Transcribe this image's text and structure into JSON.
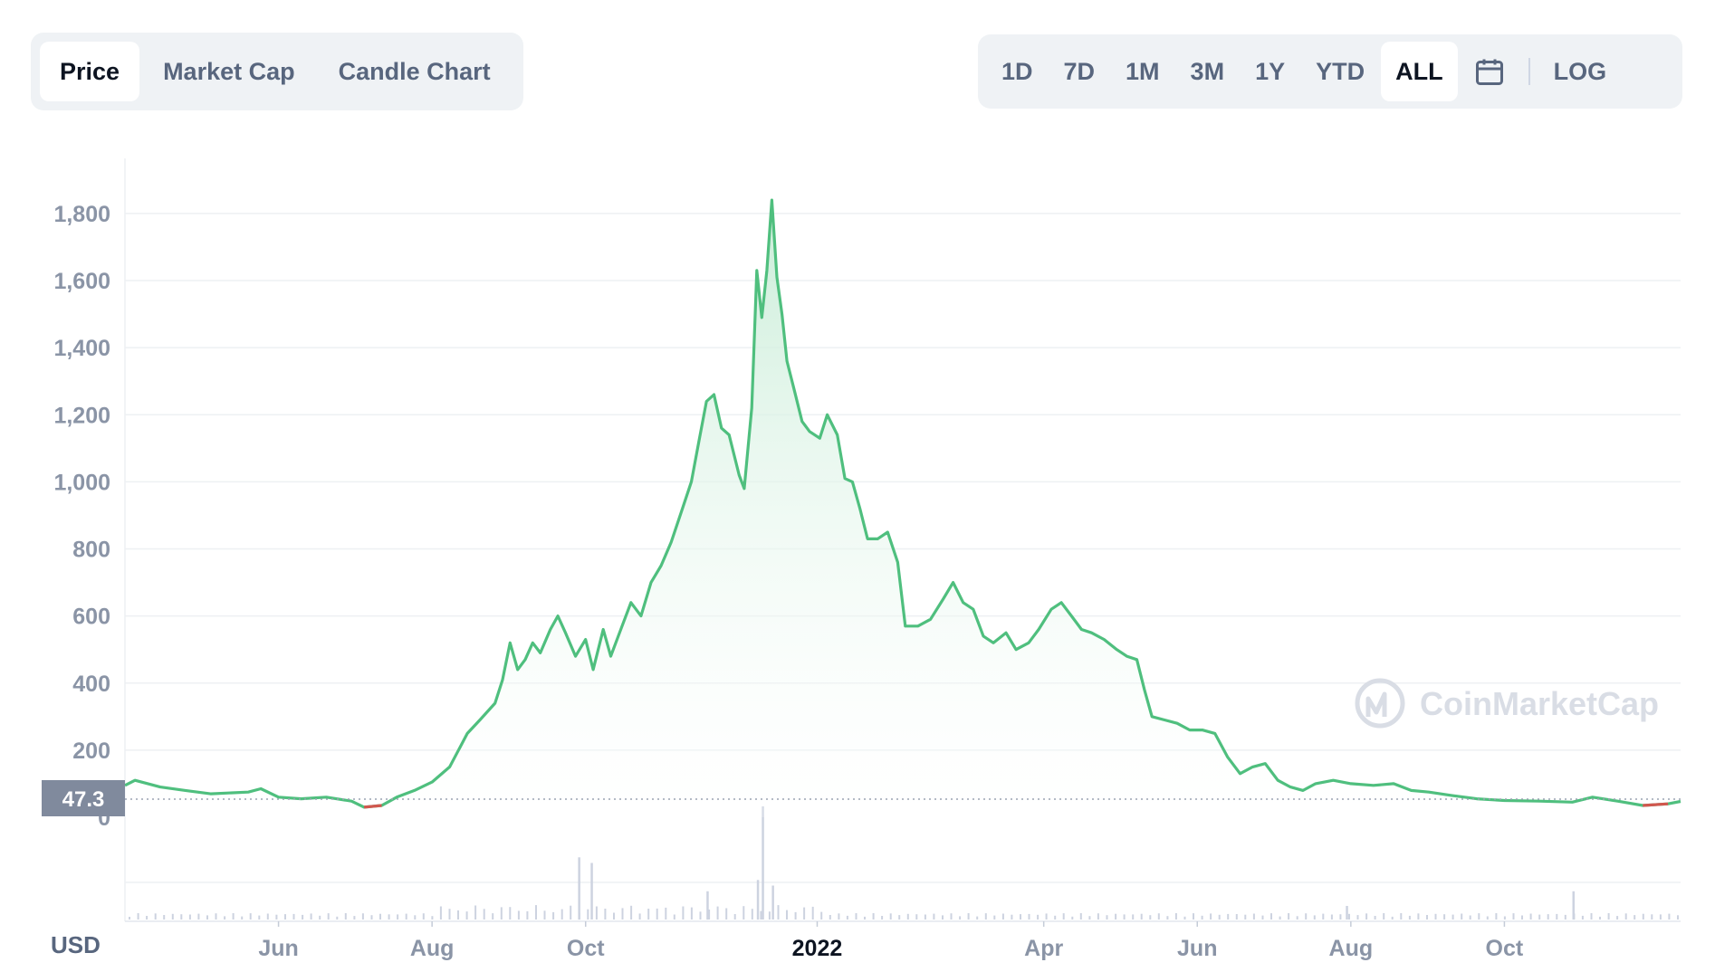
{
  "toolbar": {
    "tabs": [
      {
        "label": "Price",
        "active": true
      },
      {
        "label": "Market Cap",
        "active": false
      },
      {
        "label": "Candle Chart",
        "active": false
      }
    ],
    "ranges": [
      {
        "label": "1D",
        "active": false
      },
      {
        "label": "7D",
        "active": false
      },
      {
        "label": "1M",
        "active": false
      },
      {
        "label": "3M",
        "active": false
      },
      {
        "label": "1Y",
        "active": false
      },
      {
        "label": "YTD",
        "active": false
      },
      {
        "label": "ALL",
        "active": true
      }
    ],
    "calendar_icon": "calendar-icon",
    "log_label": "LOG"
  },
  "watermark": "CoinMarketCap",
  "currency_label": "USD",
  "current_price_label": "47.3",
  "colors": {
    "line": "#4fbf7e",
    "line_down": "#d1574e",
    "fill_top": "#c7ecd6",
    "grid": "#eef0f3",
    "tick": "#8a94a6",
    "volume": "#cdd3e0",
    "price_tag_bg": "#808a9d"
  },
  "chart_data": {
    "type": "area",
    "title": "",
    "xlabel": "",
    "ylabel": "",
    "x_unit": "date",
    "ylim": [
      0,
      1850
    ],
    "y_ticks": [
      0,
      200,
      400,
      600,
      800,
      1000,
      1200,
      1400,
      1600,
      1800
    ],
    "x_ticks": [
      {
        "label": "Jun",
        "date": "2021-06-01"
      },
      {
        "label": "Aug",
        "date": "2021-08-01"
      },
      {
        "label": "Oct",
        "date": "2021-10-01"
      },
      {
        "label": "2022",
        "date": "2022-01-01",
        "bold": true
      },
      {
        "label": "Apr",
        "date": "2022-04-01"
      },
      {
        "label": "Jun",
        "date": "2022-06-01"
      },
      {
        "label": "Aug",
        "date": "2022-08-01"
      },
      {
        "label": "Oct",
        "date": "2022-10-01"
      }
    ],
    "x_range": [
      "2021-04-01",
      "2022-12-10"
    ],
    "current_price": 47.3,
    "series": [
      {
        "points": [
          [
            "2021-04-01",
            95
          ],
          [
            "2021-04-05",
            110
          ],
          [
            "2021-04-15",
            90
          ],
          [
            "2021-04-25",
            80
          ],
          [
            "2021-05-05",
            70
          ],
          [
            "2021-05-20",
            75
          ],
          [
            "2021-05-25",
            85
          ],
          [
            "2021-06-01",
            60
          ],
          [
            "2021-06-10",
            55
          ],
          [
            "2021-06-20",
            60
          ],
          [
            "2021-06-30",
            48
          ],
          [
            "2021-07-05",
            30
          ],
          [
            "2021-07-12",
            35
          ],
          [
            "2021-07-18",
            60
          ],
          [
            "2021-07-25",
            80
          ],
          [
            "2021-08-01",
            105
          ],
          [
            "2021-08-08",
            150
          ],
          [
            "2021-08-15",
            250
          ],
          [
            "2021-08-20",
            290
          ],
          [
            "2021-08-26",
            340
          ],
          [
            "2021-08-29",
            410
          ],
          [
            "2021-09-01",
            520
          ],
          [
            "2021-09-04",
            440
          ],
          [
            "2021-09-07",
            470
          ],
          [
            "2021-09-10",
            520
          ],
          [
            "2021-09-13",
            490
          ],
          [
            "2021-09-17",
            560
          ],
          [
            "2021-09-20",
            600
          ],
          [
            "2021-09-23",
            550
          ],
          [
            "2021-09-27",
            480
          ],
          [
            "2021-10-01",
            530
          ],
          [
            "2021-10-04",
            440
          ],
          [
            "2021-10-08",
            560
          ],
          [
            "2021-10-11",
            480
          ],
          [
            "2021-10-15",
            560
          ],
          [
            "2021-10-19",
            640
          ],
          [
            "2021-10-23",
            600
          ],
          [
            "2021-10-27",
            700
          ],
          [
            "2021-10-31",
            750
          ],
          [
            "2021-11-04",
            820
          ],
          [
            "2021-11-08",
            910
          ],
          [
            "2021-11-12",
            1000
          ],
          [
            "2021-11-15",
            1120
          ],
          [
            "2021-11-18",
            1240
          ],
          [
            "2021-11-21",
            1260
          ],
          [
            "2021-11-24",
            1160
          ],
          [
            "2021-11-27",
            1140
          ],
          [
            "2021-12-01",
            1020
          ],
          [
            "2021-12-03",
            980
          ],
          [
            "2021-12-06",
            1220
          ],
          [
            "2021-12-08",
            1630
          ],
          [
            "2021-12-10",
            1490
          ],
          [
            "2021-12-12",
            1630
          ],
          [
            "2021-12-14",
            1840
          ],
          [
            "2021-12-16",
            1610
          ],
          [
            "2021-12-18",
            1500
          ],
          [
            "2021-12-20",
            1360
          ],
          [
            "2021-12-23",
            1270
          ],
          [
            "2021-12-26",
            1180
          ],
          [
            "2021-12-29",
            1150
          ],
          [
            "2022-01-02",
            1130
          ],
          [
            "2022-01-05",
            1200
          ],
          [
            "2022-01-09",
            1140
          ],
          [
            "2022-01-12",
            1010
          ],
          [
            "2022-01-15",
            1000
          ],
          [
            "2022-01-18",
            920
          ],
          [
            "2022-01-21",
            830
          ],
          [
            "2022-01-25",
            830
          ],
          [
            "2022-01-29",
            850
          ],
          [
            "2022-02-02",
            760
          ],
          [
            "2022-02-05",
            570
          ],
          [
            "2022-02-10",
            570
          ],
          [
            "2022-02-15",
            590
          ],
          [
            "2022-02-20",
            650
          ],
          [
            "2022-02-24",
            700
          ],
          [
            "2022-02-28",
            640
          ],
          [
            "2022-03-04",
            620
          ],
          [
            "2022-03-08",
            540
          ],
          [
            "2022-03-12",
            520
          ],
          [
            "2022-03-17",
            550
          ],
          [
            "2022-03-21",
            500
          ],
          [
            "2022-03-26",
            520
          ],
          [
            "2022-03-30",
            560
          ],
          [
            "2022-04-04",
            620
          ],
          [
            "2022-04-08",
            640
          ],
          [
            "2022-04-12",
            600
          ],
          [
            "2022-04-16",
            560
          ],
          [
            "2022-04-20",
            550
          ],
          [
            "2022-04-25",
            530
          ],
          [
            "2022-04-30",
            500
          ],
          [
            "2022-05-04",
            480
          ],
          [
            "2022-05-08",
            470
          ],
          [
            "2022-05-11",
            380
          ],
          [
            "2022-05-14",
            300
          ],
          [
            "2022-05-19",
            290
          ],
          [
            "2022-05-24",
            280
          ],
          [
            "2022-05-29",
            260
          ],
          [
            "2022-06-03",
            260
          ],
          [
            "2022-06-08",
            250
          ],
          [
            "2022-06-13",
            180
          ],
          [
            "2022-06-18",
            130
          ],
          [
            "2022-06-23",
            150
          ],
          [
            "2022-06-28",
            160
          ],
          [
            "2022-07-03",
            110
          ],
          [
            "2022-07-08",
            90
          ],
          [
            "2022-07-13",
            80
          ],
          [
            "2022-07-18",
            100
          ],
          [
            "2022-07-25",
            110
          ],
          [
            "2022-08-01",
            100
          ],
          [
            "2022-08-10",
            95
          ],
          [
            "2022-08-18",
            100
          ],
          [
            "2022-08-25",
            80
          ],
          [
            "2022-09-01",
            75
          ],
          [
            "2022-09-10",
            65
          ],
          [
            "2022-09-20",
            55
          ],
          [
            "2022-10-01",
            50
          ],
          [
            "2022-10-15",
            48
          ],
          [
            "2022-10-28",
            45
          ],
          [
            "2022-11-05",
            60
          ],
          [
            "2022-11-15",
            48
          ],
          [
            "2022-11-25",
            35
          ],
          [
            "2022-12-05",
            40
          ],
          [
            "2022-12-10",
            47.3
          ]
        ]
      }
    ],
    "volume_spikes": [
      {
        "date": "2021-09-28",
        "rel": 0.55
      },
      {
        "date": "2021-10-03",
        "rel": 0.5
      },
      {
        "date": "2021-11-18",
        "rel": 0.25
      },
      {
        "date": "2021-12-08",
        "rel": 0.35
      },
      {
        "date": "2021-12-10",
        "rel": 1.0
      },
      {
        "date": "2021-12-14",
        "rel": 0.3
      },
      {
        "date": "2022-07-30",
        "rel": 0.12
      },
      {
        "date": "2022-10-28",
        "rel": 0.25
      }
    ]
  }
}
